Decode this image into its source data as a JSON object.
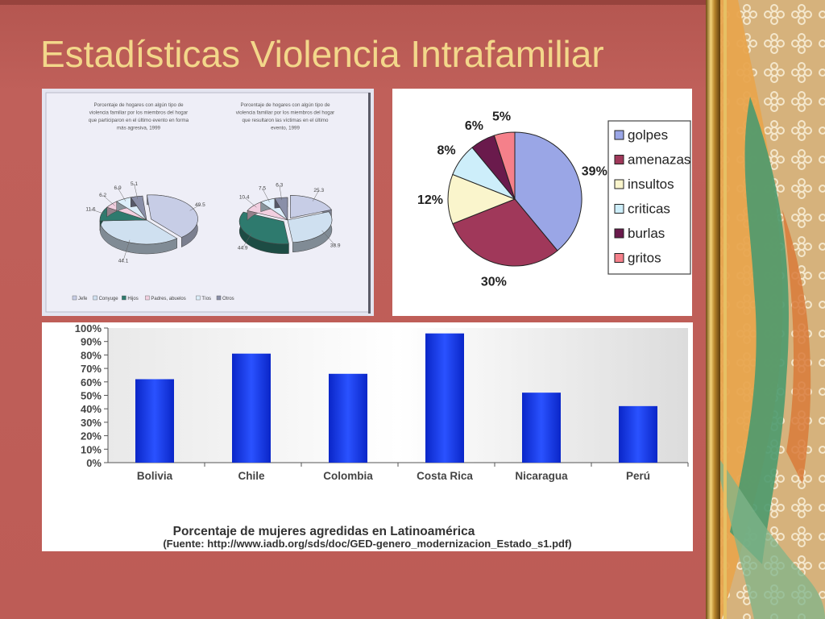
{
  "slide": {
    "title": "Estadísticas Violencia Intrafamiliar",
    "colors": {
      "background": "#c0605a",
      "title": "#f3d78a"
    }
  },
  "chart_data": [
    {
      "type": "pie",
      "title": "Porcentaje de hogares con algún tipo de violencia familiar por los miembros del hogar que participaron en el último evento en forma más agresiva, 1999",
      "categories": [
        "Jefe",
        "Conyuge",
        "Hijos",
        "Padres, abuelos",
        "Tíos",
        "Otros"
      ],
      "values": [
        49.5,
        44.1,
        11.6,
        6.2,
        6.9,
        5.1
      ],
      "colors": [
        "#c7cde6",
        "#cfe0f0",
        "#2e7a6e",
        "#f2cfe0",
        "#dceefa",
        "#8a8fa8"
      ]
    },
    {
      "type": "pie",
      "title": "Porcentaje de hogares con algún tipo de violencia familiar por los miembros del hogar que resultaron las víctimas en el último evento, 1999",
      "categories": [
        "Jefe",
        "Conyuge",
        "Hijos",
        "Padres, abuelos",
        "Tíos",
        "Otros"
      ],
      "values": [
        25.3,
        38.9,
        44.9,
        10.4,
        7.5,
        6.3
      ],
      "colors": [
        "#c7cde6",
        "#cfe0f0",
        "#2e7a6e",
        "#f2cfe0",
        "#dceefa",
        "#8a8fa8"
      ]
    },
    {
      "type": "pie",
      "categories": [
        "golpes",
        "amenazas",
        "insultos",
        "criticas",
        "burlas",
        "gritos"
      ],
      "values": [
        39,
        30,
        12,
        8,
        6,
        5
      ],
      "value_labels": [
        "39%",
        "30%",
        "12%",
        "8%",
        "6%",
        "5%"
      ],
      "colors": [
        "#9aa6e6",
        "#a0385a",
        "#faf5cc",
        "#cdeefa",
        "#6a1a4c",
        "#f5808a"
      ],
      "legend": "right"
    },
    {
      "type": "bar",
      "title": "Porcentaje de mujeres agredidas en Latinoamérica",
      "source": "(Fuente: http://www.iadb.org/sds/doc/GED-genero_modernizacion_Estado_s1.pdf)",
      "categories": [
        "Bolivia",
        "Chile",
        "Colombia",
        "Costa Rica",
        "Nicaragua",
        "Perú"
      ],
      "values": [
        62,
        81,
        66,
        96,
        52,
        42
      ],
      "y_ticks": [
        "0%",
        "10%",
        "20%",
        "30%",
        "40%",
        "50%",
        "60%",
        "70%",
        "80%",
        "90%",
        "100%"
      ],
      "ylim": [
        0,
        100
      ],
      "color": "#1538e6",
      "grid": false
    }
  ]
}
